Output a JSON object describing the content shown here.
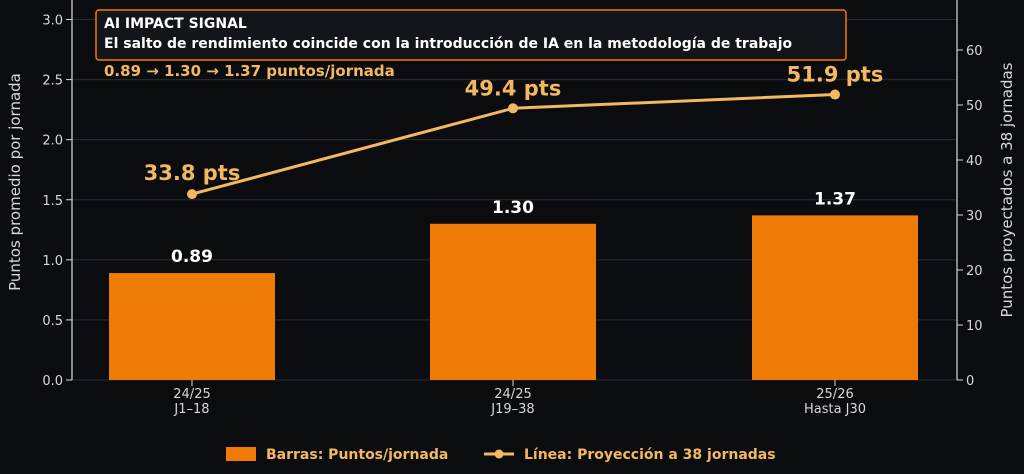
{
  "chart_data": {
    "type": "bar",
    "categories": [
      "24/25\nJ1–18",
      "24/25\nJ19–38",
      "25/26\nHasta J30"
    ],
    "series": [
      {
        "name": "Barras: Puntos/jornada",
        "type": "bar",
        "axis": "left",
        "values": [
          0.89,
          1.3,
          1.37
        ],
        "labels": [
          "0.89",
          "1.30",
          "1.37"
        ]
      },
      {
        "name": "Línea: Proyección a 38 jornadas",
        "type": "line",
        "axis": "right",
        "values": [
          33.8,
          49.4,
          51.9
        ],
        "labels": [
          "33.8 pts",
          "49.4 pts",
          "51.9 pts"
        ]
      }
    ],
    "ylabel": "Puntos promedio por jornada",
    "ylabel_right": "Puntos proyectados a 38 jornadas",
    "ylim": [
      0,
      3.0
    ],
    "yticks": [
      "0.0",
      "0.5",
      "1.0",
      "1.5",
      "2.0",
      "2.5",
      "3.0"
    ],
    "ylim_right": [
      0,
      65
    ],
    "yticks_right": [
      "0",
      "10",
      "20",
      "30",
      "40",
      "50",
      "60"
    ],
    "grid": true,
    "legend_position": "bottom-center",
    "annotation": {
      "title": "AI IMPACT SIGNAL",
      "subtitle": "El salto de rendimiento coincide con la introducción de IA en la metodología de trabajo",
      "progression": "0.89  →  1.30  →  1.37 puntos/jornada"
    },
    "colors": {
      "bar": "#f07a06",
      "line": "#f4b95e",
      "background": "#0b0c10",
      "axis": "#d8d8d8",
      "grid": "#2a2c33"
    }
  }
}
